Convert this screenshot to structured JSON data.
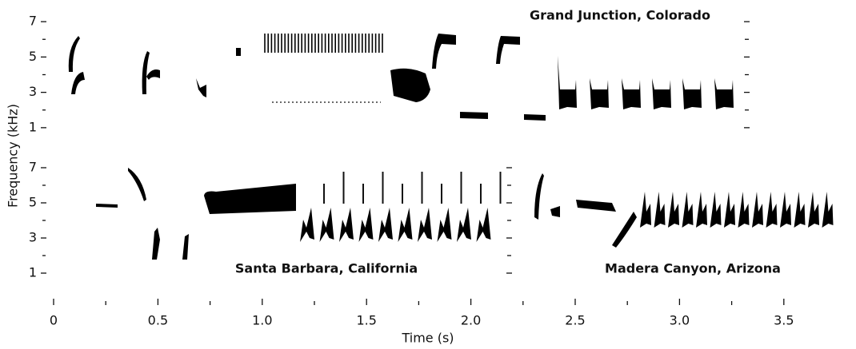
{
  "chart_data": {
    "type": "spectrogram",
    "x_label": "Time (s)",
    "y_label": "Frequency (kHz)",
    "xlim": [
      0,
      3.75
    ],
    "ylim": [
      0,
      8
    ],
    "xticks": [
      0,
      0.5,
      {
        "value": 1,
        "label": "1.0"
      },
      1.5,
      {
        "value": 2,
        "label": "2.0"
      },
      2.5,
      {
        "value": 3,
        "label": "3.0"
      },
      3.5
    ],
    "yticks": [
      1,
      3,
      5,
      7
    ],
    "panels": [
      {
        "title": "Grand Junction, Colorado"
      },
      {
        "title": "Santa Barbara, California"
      },
      {
        "title": "Madera Canyon, Arizona"
      }
    ]
  }
}
